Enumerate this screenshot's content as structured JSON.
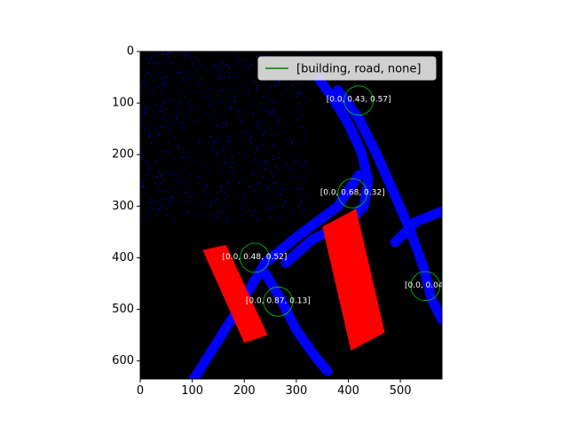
{
  "chart_data": {
    "type": "image",
    "image": {
      "width": 580,
      "height": 635,
      "background": "#000000"
    },
    "xlim": [
      0,
      580
    ],
    "ylim": [
      635,
      0
    ],
    "y_inverted": true,
    "x_ticks": [
      "0",
      "100",
      "200",
      "300",
      "400",
      "500"
    ],
    "y_ticks": [
      "0",
      "100",
      "200",
      "300",
      "400",
      "500",
      "600"
    ],
    "legend": {
      "placement": "upper-right",
      "entries": [
        {
          "label": "[building, road, none]",
          "color": "#008000",
          "marker": "line"
        }
      ]
    },
    "classes": [
      {
        "name": "building",
        "color": "#ff0000"
      },
      {
        "name": "road",
        "color": "#0000ff"
      },
      {
        "name": "none",
        "color": "#000000"
      }
    ],
    "annotations": [
      {
        "x": 420,
        "y": 95,
        "radius": 28,
        "label": "[0.0, 0.43, 0.57]"
      },
      {
        "x": 408,
        "y": 275,
        "radius": 28,
        "label": "[0.0, 0.68, 0.32]"
      },
      {
        "x": 220,
        "y": 400,
        "radius": 28,
        "label": "[0.0, 0.48, 0.52]"
      },
      {
        "x": 265,
        "y": 485,
        "radius": 28,
        "label": "[0.0, 0.87, 0.13]"
      },
      {
        "x": 548,
        "y": 455,
        "radius": 28,
        "label": "[0.0, 0.04,"
      }
    ],
    "annotation_color": "#00cc00",
    "annotation_text_color": "#ffffff",
    "road_paths": [
      {
        "name": "main-diagonal-road",
        "points": [
          [
            100,
            640
          ],
          [
            175,
            520
          ],
          [
            240,
            410
          ],
          [
            300,
            360
          ],
          [
            380,
            300
          ],
          [
            420,
            240
          ]
        ]
      },
      {
        "name": "curved-link-road",
        "points": [
          [
            280,
            410
          ],
          [
            330,
            365
          ],
          [
            400,
            330
          ],
          [
            430,
            300
          ],
          [
            438,
            250
          ],
          [
            425,
            195
          ],
          [
            400,
            140
          ],
          [
            370,
            90
          ],
          [
            345,
            55
          ]
        ]
      },
      {
        "name": "east-road",
        "points": [
          [
            380,
            75
          ],
          [
            420,
            130
          ],
          [
            455,
            200
          ],
          [
            490,
            280
          ],
          [
            520,
            350
          ],
          [
            545,
            420
          ],
          [
            560,
            480
          ],
          [
            580,
            520
          ]
        ]
      },
      {
        "name": "lower-road",
        "points": [
          [
            240,
            430
          ],
          [
            270,
            480
          ],
          [
            300,
            540
          ],
          [
            335,
            590
          ],
          [
            360,
            620
          ]
        ]
      },
      {
        "name": "east-spur",
        "points": [
          [
            490,
            370
          ],
          [
            530,
            330
          ],
          [
            580,
            310
          ]
        ]
      }
    ],
    "buildings": [
      {
        "name": "building-left",
        "points": [
          [
            120,
            385
          ],
          [
            165,
            375
          ],
          [
            245,
            550
          ],
          [
            200,
            565
          ]
        ]
      },
      {
        "name": "building-right",
        "points": [
          [
            350,
            340
          ],
          [
            415,
            305
          ],
          [
            470,
            545
          ],
          [
            405,
            580
          ]
        ]
      }
    ]
  }
}
